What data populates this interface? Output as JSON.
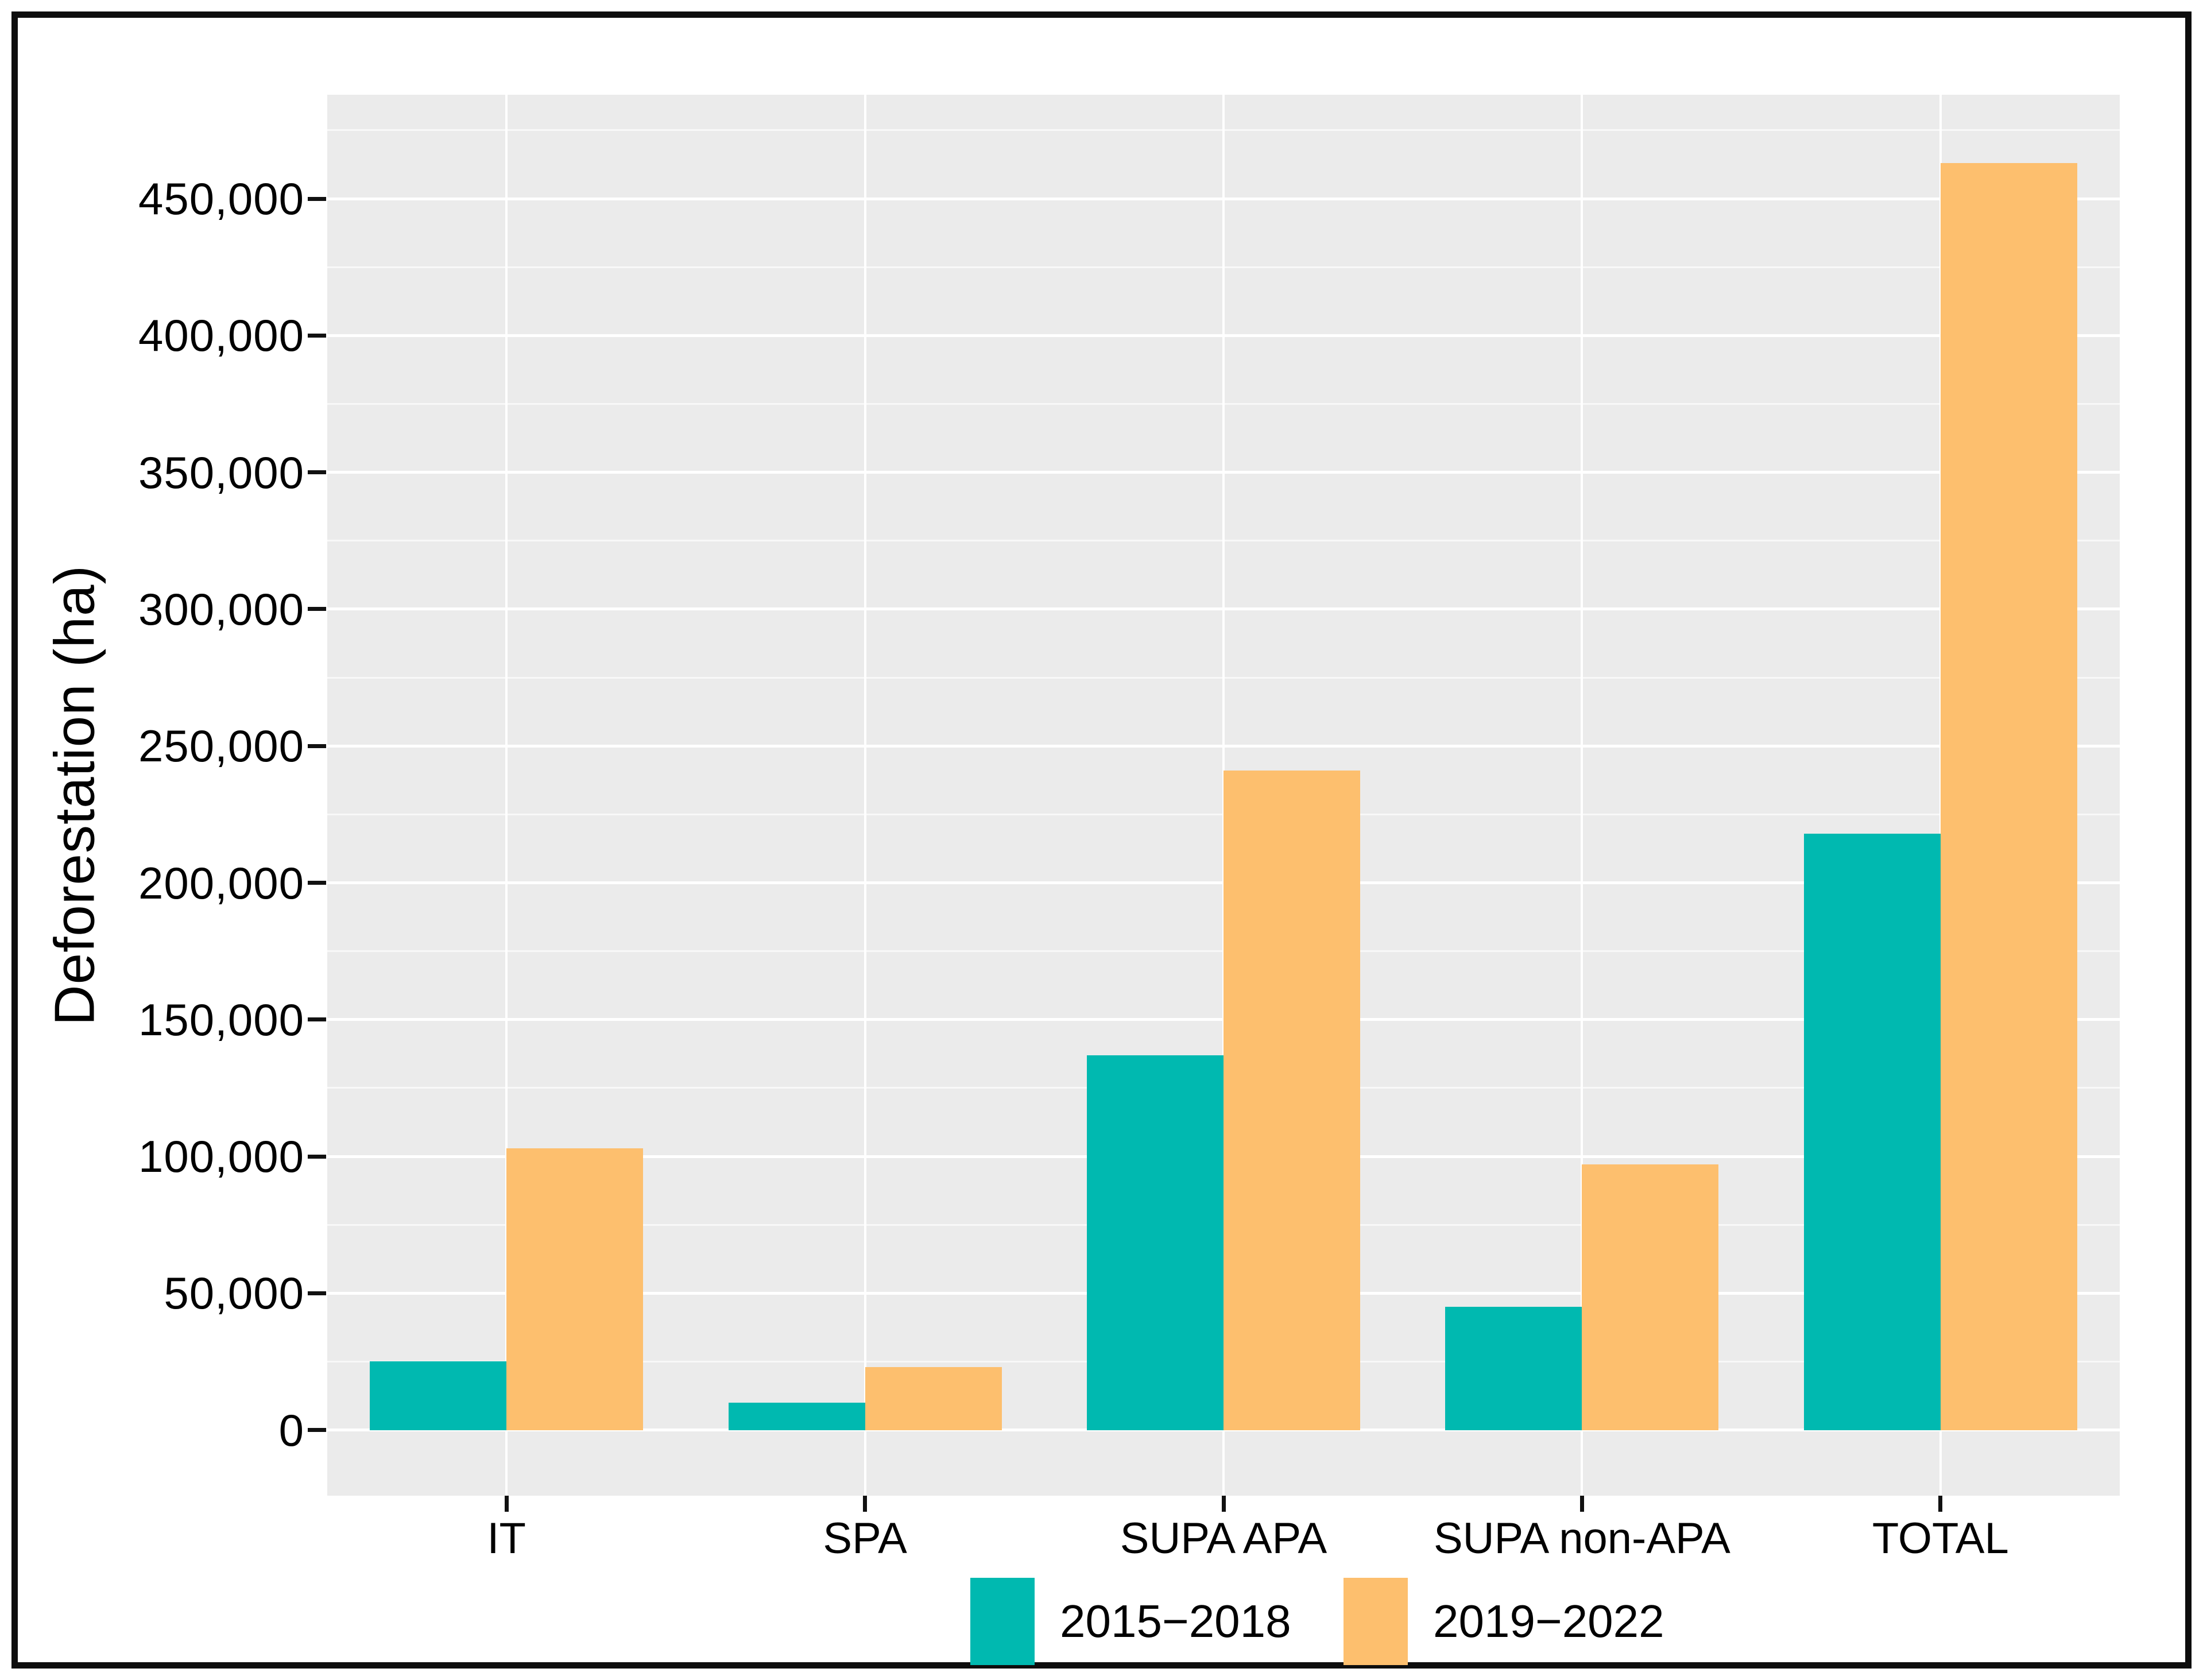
{
  "figure": {
    "background": "#ffffff",
    "frame_color": "#0d0d0d"
  },
  "chart_data": {
    "type": "bar",
    "title": "",
    "ylabel": "Deforestation (ha)",
    "xlabel": "",
    "categories": [
      "IT",
      "SPA",
      "SUPA APA",
      "SUPA non-APA",
      "TOTAL"
    ],
    "series": [
      {
        "name": "2015−2018",
        "color": "#00b9b0",
        "values": [
          25000,
          10000,
          137000,
          45000,
          218000
        ]
      },
      {
        "name": "2019−2022",
        "color": "#fdbf6e",
        "values": [
          103000,
          23000,
          241000,
          97000,
          463000
        ]
      }
    ],
    "y_axis": {
      "min": 0,
      "max": 450000,
      "major_step": 50000,
      "minor_step": 25000,
      "draw_min": -24000,
      "draw_max": 488000,
      "tick_labels": [
        "0",
        "50,000",
        "100,000",
        "150,000",
        "200,000",
        "250,000",
        "300,000",
        "350,000",
        "400,000",
        "450,000"
      ]
    },
    "grid": true,
    "panel_background": "#ebebeb",
    "gridline_color": "#ffffff",
    "legend_position": "bottom"
  }
}
